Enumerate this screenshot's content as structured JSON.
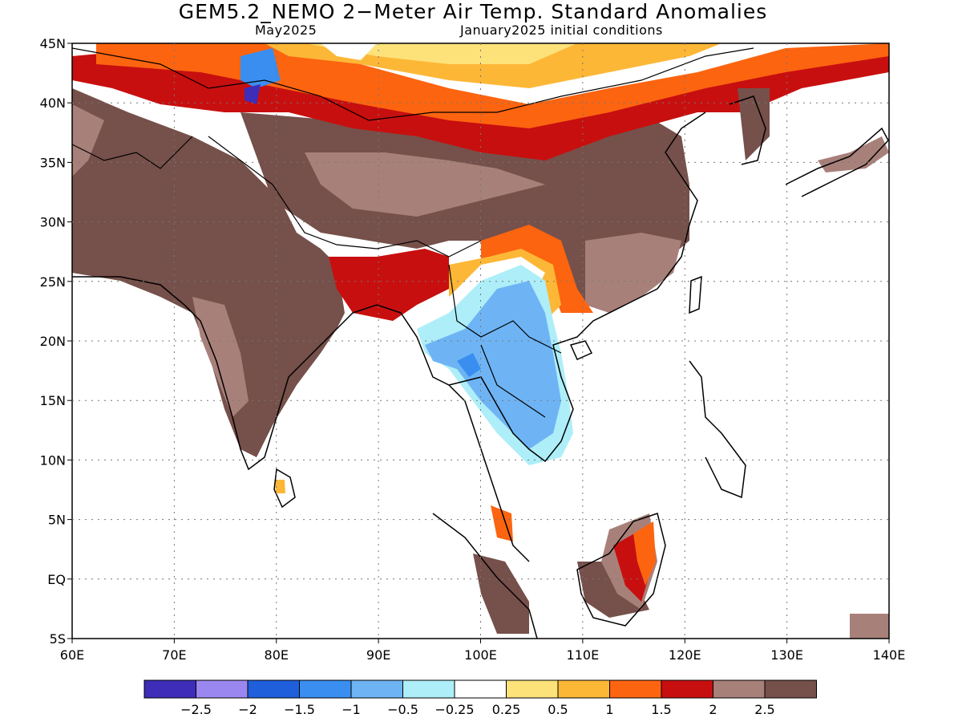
{
  "header": {
    "title": "GEM5.2_NEMO 2−Meter Air Temp. Standard Anomalies",
    "forecast_month": "May2025",
    "init": "January2025 initial conditions"
  },
  "axes": {
    "lat_labels": [
      "45N",
      "40N",
      "35N",
      "30N",
      "25N",
      "20N",
      "15N",
      "10N",
      "5N",
      "EQ",
      "5S"
    ],
    "lon_labels": [
      "60E",
      "70E",
      "80E",
      "90E",
      "100E",
      "110E",
      "120E",
      "130E",
      "140E"
    ],
    "lon_range": [
      60,
      140
    ],
    "lat_range": [
      -5,
      45
    ],
    "grid": "dotted"
  },
  "colorbar": {
    "colors": [
      "#3d2db8",
      "#9b87f0",
      "#1f5fdc",
      "#3a8ef0",
      "#6eb4f5",
      "#aeeef8",
      "#ffffff",
      "#fde27a",
      "#fdb737",
      "#fc6410",
      "#c80f0f",
      "#a8807a",
      "#76504a"
    ],
    "labels": [
      "−2.5",
      "−2",
      "−1.5",
      "−1",
      "−0.5",
      "−0.25",
      "0.25",
      "0.5",
      "1",
      "1.5",
      "2",
      "2.5"
    ]
  },
  "regions": [
    {
      "name": "India",
      "class": "> 2.5"
    },
    {
      "name": "Tibetan Plateau / China",
      "class": "2 to 2.5"
    },
    {
      "name": "Mongolia / N China",
      "class": "0.5 to 2"
    },
    {
      "name": "Indochina",
      "class": "−1 to −0.5"
    },
    {
      "name": "Borneo",
      "class": "1 to 2.5"
    }
  ]
}
